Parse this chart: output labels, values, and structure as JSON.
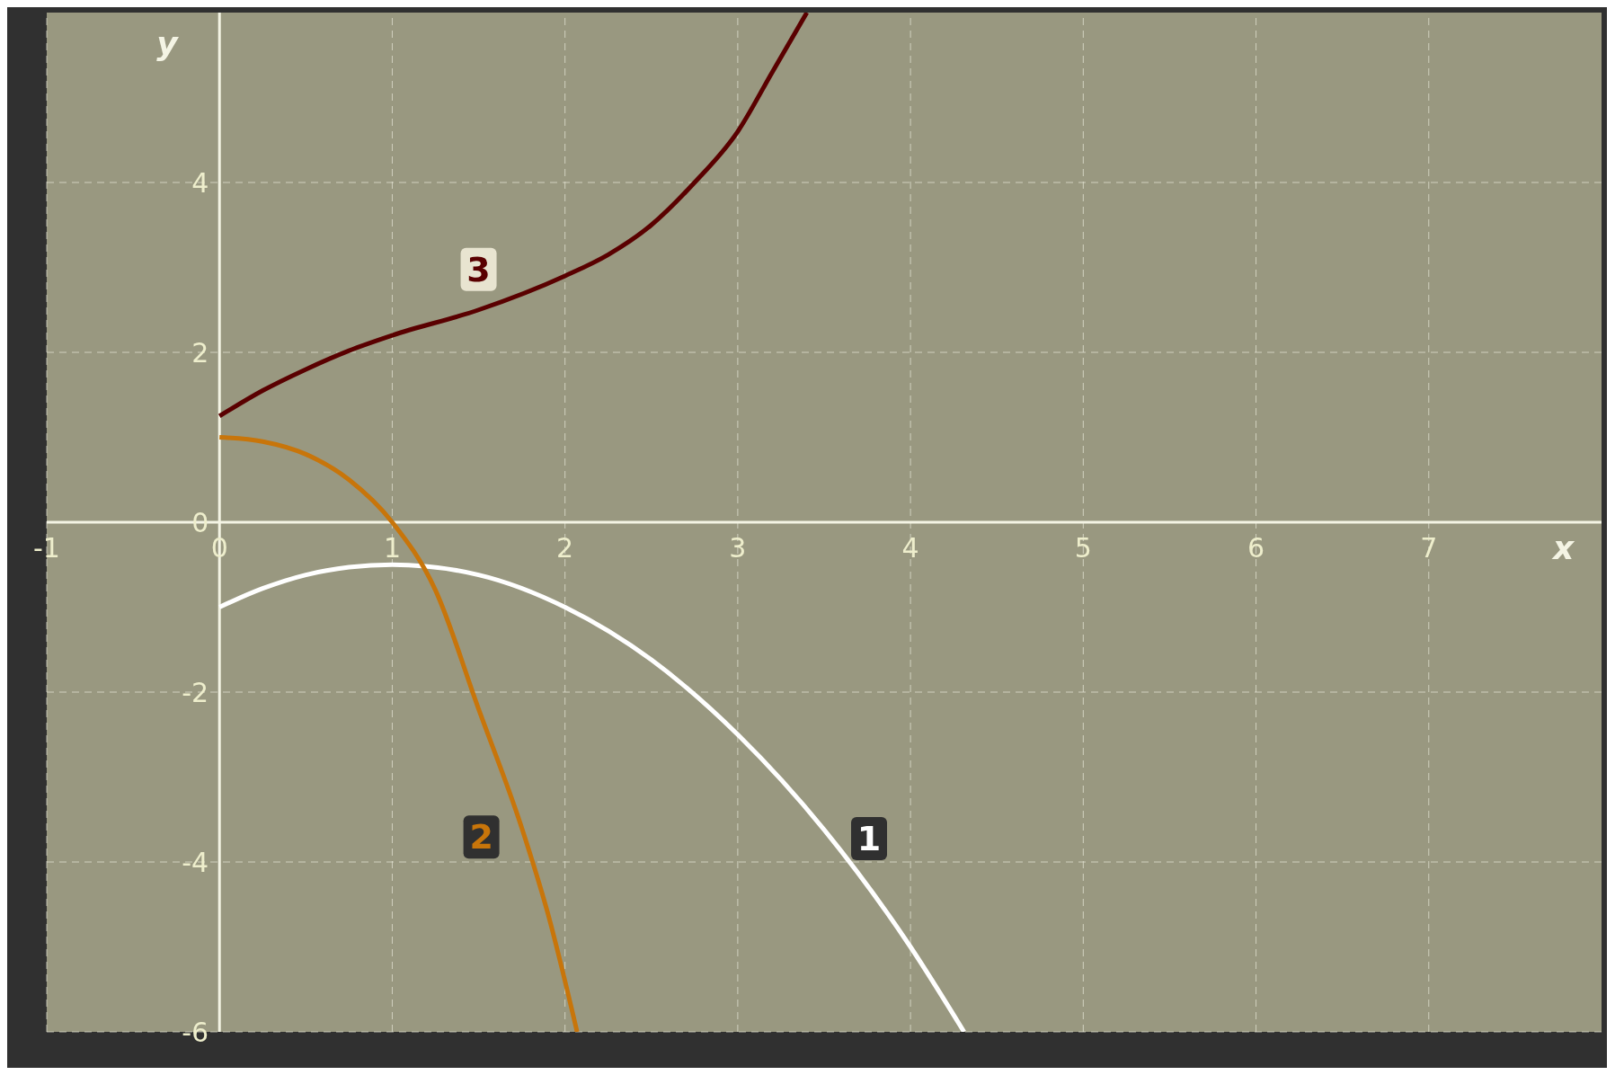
{
  "chart_data": {
    "type": "line",
    "xlabel": "x",
    "ylabel": "y",
    "xlim": [
      -1,
      8
    ],
    "ylim": [
      -6,
      6
    ],
    "xticks": [
      -1,
      0,
      1,
      2,
      3,
      4,
      5,
      6,
      7
    ],
    "yticks": [
      -6,
      -4,
      -2,
      0,
      2,
      4
    ],
    "grid": true,
    "marker": "none",
    "line_style": "solid",
    "series": [
      {
        "name": "1",
        "color": "#ffffff",
        "x": [
          0,
          0.25,
          0.5,
          0.75,
          1,
          1.5,
          2,
          2.5,
          3,
          3.5,
          4,
          4.31
        ],
        "values": [
          -1,
          -0.78,
          -0.62,
          -0.53,
          -0.5,
          -0.62,
          -1,
          -1.62,
          -2.5,
          -3.62,
          -5,
          -6
        ]
      },
      {
        "name": "2",
        "color": "#c8750a",
        "x": [
          0,
          0.25,
          0.5,
          0.75,
          1,
          1.25,
          1.5,
          1.75,
          1.9,
          2.07
        ],
        "values": [
          1,
          0.95,
          0.8,
          0.5,
          0,
          -0.8,
          -2.2,
          -3.6,
          -4.6,
          -6
        ]
      },
      {
        "name": "3",
        "color": "#5a0000",
        "x": [
          0,
          0.25,
          0.5,
          0.75,
          1,
          1.5,
          2,
          2.25,
          2.5,
          2.75,
          3,
          3.2,
          3.4
        ],
        "values": [
          1.25,
          1.55,
          1.8,
          2.02,
          2.2,
          2.5,
          2.9,
          3.15,
          3.5,
          4,
          4.6,
          5.3,
          6
        ]
      }
    ]
  }
}
